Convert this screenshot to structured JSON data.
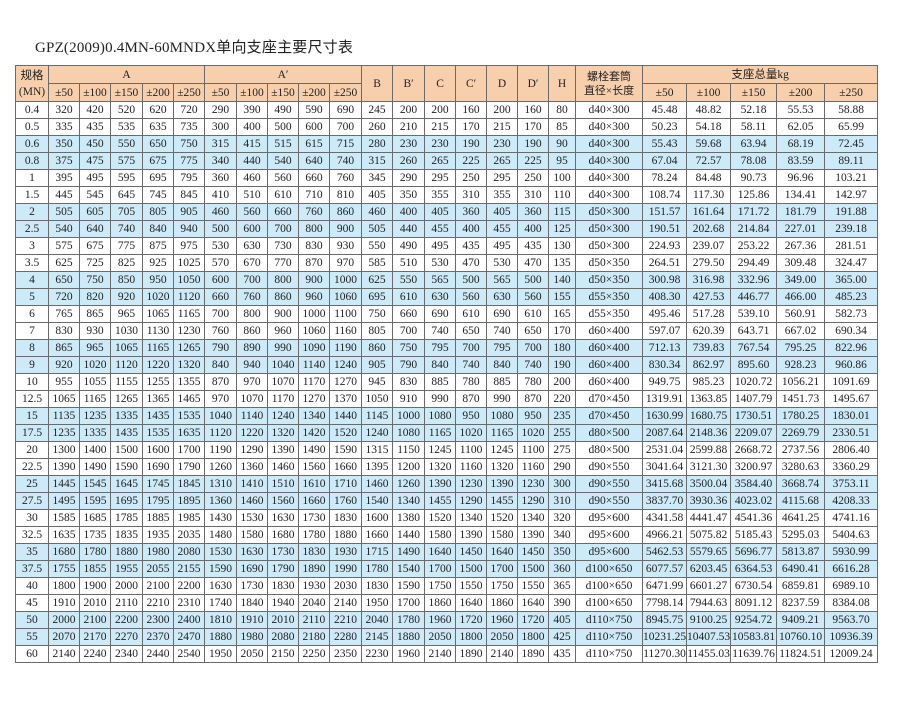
{
  "title": "GPZ(2009)0.4MN-60MNDX单向支座主要尺寸表",
  "colors": {
    "header_bg": "#f8cfad",
    "alt_row_bg": "#cdeaf8",
    "border": "#6a6a6a"
  },
  "header": {
    "spec": "规格",
    "spec_unit": "(MN)",
    "A": "A",
    "A_prime": "A′",
    "B": "B",
    "B_prime": "B′",
    "C": "C",
    "C_prime": "C′",
    "D": "D",
    "D_prime": "D′",
    "H": "H",
    "bolt_line1": "螺栓套筒",
    "bolt_line2": "直径×长度",
    "weight": "支座总量kg",
    "A_sub": [
      "±50",
      "±100",
      "±150",
      "±200",
      "±250"
    ],
    "A_prime_sub": [
      "±50",
      "±100",
      "±150",
      "±200",
      "±250"
    ],
    "weight_sub": [
      "±50",
      "±100",
      "±150",
      "±200",
      "±250"
    ]
  },
  "rows": [
    [
      "0.4",
      "320",
      "420",
      "520",
      "620",
      "720",
      "290",
      "390",
      "490",
      "590",
      "690",
      "245",
      "200",
      "200",
      "160",
      "200",
      "160",
      "80",
      "d40×300",
      "45.48",
      "48.82",
      "52.18",
      "55.53",
      "58.88"
    ],
    [
      "0.5",
      "335",
      "435",
      "535",
      "635",
      "735",
      "300",
      "400",
      "500",
      "600",
      "700",
      "260",
      "210",
      "215",
      "170",
      "215",
      "170",
      "85",
      "d40×300",
      "50.23",
      "54.18",
      "58.11",
      "62.05",
      "65.99"
    ],
    [
      "0.6",
      "350",
      "450",
      "550",
      "650",
      "750",
      "315",
      "415",
      "515",
      "615",
      "715",
      "280",
      "230",
      "230",
      "190",
      "230",
      "190",
      "90",
      "d40×300",
      "55.43",
      "59.68",
      "63.94",
      "68.19",
      "72.45"
    ],
    [
      "0.8",
      "375",
      "475",
      "575",
      "675",
      "775",
      "340",
      "440",
      "540",
      "640",
      "740",
      "315",
      "260",
      "265",
      "225",
      "265",
      "225",
      "95",
      "d40×300",
      "67.04",
      "72.57",
      "78.08",
      "83.59",
      "89.11"
    ],
    [
      "1",
      "395",
      "495",
      "595",
      "695",
      "795",
      "360",
      "460",
      "560",
      "660",
      "760",
      "345",
      "290",
      "295",
      "250",
      "295",
      "250",
      "100",
      "d40×300",
      "78.24",
      "84.48",
      "90.73",
      "96.96",
      "103.21"
    ],
    [
      "1.5",
      "445",
      "545",
      "645",
      "745",
      "845",
      "410",
      "510",
      "610",
      "710",
      "810",
      "405",
      "350",
      "355",
      "310",
      "355",
      "310",
      "110",
      "d40×300",
      "108.74",
      "117.30",
      "125.86",
      "134.41",
      "142.97"
    ],
    [
      "2",
      "505",
      "605",
      "705",
      "805",
      "905",
      "460",
      "560",
      "660",
      "760",
      "860",
      "460",
      "400",
      "405",
      "360",
      "405",
      "360",
      "115",
      "d50×300",
      "151.57",
      "161.64",
      "171.72",
      "181.79",
      "191.88"
    ],
    [
      "2.5",
      "540",
      "640",
      "740",
      "840",
      "940",
      "500",
      "600",
      "700",
      "800",
      "900",
      "505",
      "440",
      "455",
      "400",
      "455",
      "400",
      "125",
      "d50×300",
      "190.51",
      "202.68",
      "214.84",
      "227.01",
      "239.18"
    ],
    [
      "3",
      "575",
      "675",
      "775",
      "875",
      "975",
      "530",
      "630",
      "730",
      "830",
      "930",
      "550",
      "490",
      "495",
      "435",
      "495",
      "435",
      "130",
      "d50×300",
      "224.93",
      "239.07",
      "253.22",
      "267.36",
      "281.51"
    ],
    [
      "3.5",
      "625",
      "725",
      "825",
      "925",
      "1025",
      "570",
      "670",
      "770",
      "870",
      "970",
      "585",
      "510",
      "530",
      "470",
      "530",
      "470",
      "135",
      "d50×350",
      "264.51",
      "279.50",
      "294.49",
      "309.48",
      "324.47"
    ],
    [
      "4",
      "650",
      "750",
      "850",
      "950",
      "1050",
      "600",
      "700",
      "800",
      "900",
      "1000",
      "625",
      "550",
      "565",
      "500",
      "565",
      "500",
      "140",
      "d50×350",
      "300.98",
      "316.98",
      "332.96",
      "349.00",
      "365.00"
    ],
    [
      "5",
      "720",
      "820",
      "920",
      "1020",
      "1120",
      "660",
      "760",
      "860",
      "960",
      "1060",
      "695",
      "610",
      "630",
      "560",
      "630",
      "560",
      "155",
      "d55×350",
      "408.30",
      "427.53",
      "446.77",
      "466.00",
      "485.23"
    ],
    [
      "6",
      "765",
      "865",
      "965",
      "1065",
      "1165",
      "700",
      "800",
      "900",
      "1000",
      "1100",
      "750",
      "660",
      "690",
      "610",
      "690",
      "610",
      "165",
      "d55×350",
      "495.46",
      "517.28",
      "539.10",
      "560.91",
      "582.73"
    ],
    [
      "7",
      "830",
      "930",
      "1030",
      "1130",
      "1230",
      "760",
      "860",
      "960",
      "1060",
      "1160",
      "805",
      "700",
      "740",
      "650",
      "740",
      "650",
      "170",
      "d60×400",
      "597.07",
      "620.39",
      "643.71",
      "667.02",
      "690.34"
    ],
    [
      "8",
      "865",
      "965",
      "1065",
      "1165",
      "1265",
      "790",
      "890",
      "990",
      "1090",
      "1190",
      "860",
      "750",
      "795",
      "700",
      "795",
      "700",
      "180",
      "d60×400",
      "712.13",
      "739.83",
      "767.54",
      "795.25",
      "822.96"
    ],
    [
      "9",
      "920",
      "1020",
      "1120",
      "1220",
      "1320",
      "840",
      "940",
      "1040",
      "1140",
      "1240",
      "905",
      "790",
      "840",
      "740",
      "840",
      "740",
      "190",
      "d60×400",
      "830.34",
      "862.97",
      "895.60",
      "928.23",
      "960.86"
    ],
    [
      "10",
      "955",
      "1055",
      "1155",
      "1255",
      "1355",
      "870",
      "970",
      "1070",
      "1170",
      "1270",
      "945",
      "830",
      "885",
      "780",
      "885",
      "780",
      "200",
      "d60×400",
      "949.75",
      "985.23",
      "1020.72",
      "1056.21",
      "1091.69"
    ],
    [
      "12.5",
      "1065",
      "1165",
      "1265",
      "1365",
      "1465",
      "970",
      "1070",
      "1170",
      "1270",
      "1370",
      "1050",
      "910",
      "990",
      "870",
      "990",
      "870",
      "220",
      "d70×450",
      "1319.91",
      "1363.85",
      "1407.79",
      "1451.73",
      "1495.67"
    ],
    [
      "15",
      "1135",
      "1235",
      "1335",
      "1435",
      "1535",
      "1040",
      "1140",
      "1240",
      "1340",
      "1440",
      "1145",
      "1000",
      "1080",
      "950",
      "1080",
      "950",
      "235",
      "d70×450",
      "1630.99",
      "1680.75",
      "1730.51",
      "1780.25",
      "1830.01"
    ],
    [
      "17.5",
      "1235",
      "1335",
      "1435",
      "1535",
      "1635",
      "1120",
      "1220",
      "1320",
      "1420",
      "1520",
      "1240",
      "1080",
      "1165",
      "1020",
      "1165",
      "1020",
      "255",
      "d80×500",
      "2087.64",
      "2148.36",
      "2209.07",
      "2269.79",
      "2330.51"
    ],
    [
      "20",
      "1300",
      "1400",
      "1500",
      "1600",
      "1700",
      "1190",
      "1290",
      "1390",
      "1490",
      "1590",
      "1315",
      "1150",
      "1245",
      "1100",
      "1245",
      "1100",
      "275",
      "d80×500",
      "2531.04",
      "2599.88",
      "2668.72",
      "2737.56",
      "2806.40"
    ],
    [
      "22.5",
      "1390",
      "1490",
      "1590",
      "1690",
      "1790",
      "1260",
      "1360",
      "1460",
      "1560",
      "1660",
      "1395",
      "1200",
      "1320",
      "1160",
      "1320",
      "1160",
      "290",
      "d90×550",
      "3041.64",
      "3121.30",
      "3200.97",
      "3280.63",
      "3360.29"
    ],
    [
      "25",
      "1445",
      "1545",
      "1645",
      "1745",
      "1845",
      "1310",
      "1410",
      "1510",
      "1610",
      "1710",
      "1460",
      "1260",
      "1390",
      "1230",
      "1390",
      "1230",
      "300",
      "d90×550",
      "3415.68",
      "3500.04",
      "3584.40",
      "3668.74",
      "3753.11"
    ],
    [
      "27.5",
      "1495",
      "1595",
      "1695",
      "1795",
      "1895",
      "1360",
      "1460",
      "1560",
      "1660",
      "1760",
      "1540",
      "1340",
      "1455",
      "1290",
      "1455",
      "1290",
      "310",
      "d90×550",
      "3837.70",
      "3930.36",
      "4023.02",
      "4115.68",
      "4208.33"
    ],
    [
      "30",
      "1585",
      "1685",
      "1785",
      "1885",
      "1985",
      "1430",
      "1530",
      "1630",
      "1730",
      "1830",
      "1600",
      "1380",
      "1520",
      "1340",
      "1520",
      "1340",
      "320",
      "d95×600",
      "4341.58",
      "4441.47",
      "4541.36",
      "4641.25",
      "4741.16"
    ],
    [
      "32.5",
      "1635",
      "1735",
      "1835",
      "1935",
      "2035",
      "1480",
      "1580",
      "1680",
      "1780",
      "1880",
      "1660",
      "1440",
      "1580",
      "1390",
      "1580",
      "1390",
      "340",
      "d95×600",
      "4966.21",
      "5075.82",
      "5185.43",
      "5295.03",
      "5404.63"
    ],
    [
      "35",
      "1680",
      "1780",
      "1880",
      "1980",
      "2080",
      "1530",
      "1630",
      "1730",
      "1830",
      "1930",
      "1715",
      "1490",
      "1640",
      "1450",
      "1640",
      "1450",
      "350",
      "d95×600",
      "5462.53",
      "5579.65",
      "5696.77",
      "5813.87",
      "5930.99"
    ],
    [
      "37.5",
      "1755",
      "1855",
      "1955",
      "2055",
      "2155",
      "1590",
      "1690",
      "1790",
      "1890",
      "1990",
      "1780",
      "1540",
      "1700",
      "1500",
      "1700",
      "1500",
      "360",
      "d100×650",
      "6077.57",
      "6203.45",
      "6364.53",
      "6490.41",
      "6616.28"
    ],
    [
      "40",
      "1800",
      "1900",
      "2000",
      "2100",
      "2200",
      "1630",
      "1730",
      "1830",
      "1930",
      "2030",
      "1830",
      "1590",
      "1750",
      "1550",
      "1750",
      "1550",
      "365",
      "d100×650",
      "6471.99",
      "6601.27",
      "6730.54",
      "6859.81",
      "6989.10"
    ],
    [
      "45",
      "1910",
      "2010",
      "2110",
      "2210",
      "2310",
      "1740",
      "1840",
      "1940",
      "2040",
      "2140",
      "1950",
      "1700",
      "1860",
      "1640",
      "1860",
      "1640",
      "390",
      "d100×650",
      "7798.14",
      "7944.63",
      "8091.12",
      "8237.59",
      "8384.08"
    ],
    [
      "50",
      "2000",
      "2100",
      "2200",
      "2300",
      "2400",
      "1810",
      "1910",
      "2010",
      "2110",
      "2210",
      "2040",
      "1780",
      "1960",
      "1720",
      "1960",
      "1720",
      "405",
      "d110×750",
      "8945.75",
      "9100.25",
      "9254.72",
      "9409.21",
      "9563.70"
    ],
    [
      "55",
      "2070",
      "2170",
      "2270",
      "2370",
      "2470",
      "1880",
      "1980",
      "2080",
      "2180",
      "2280",
      "2145",
      "1880",
      "2050",
      "1800",
      "2050",
      "1800",
      "425",
      "d110×750",
      "10231.25",
      "10407.53",
      "10583.81",
      "10760.10",
      "10936.39"
    ],
    [
      "60",
      "2140",
      "2240",
      "2340",
      "2440",
      "2540",
      "1950",
      "2050",
      "2150",
      "2250",
      "2350",
      "2230",
      "1960",
      "2140",
      "1890",
      "2140",
      "1890",
      "435",
      "d110×750",
      "11270.30",
      "11455.03",
      "11639.76",
      "11824.51",
      "12009.24"
    ]
  ]
}
